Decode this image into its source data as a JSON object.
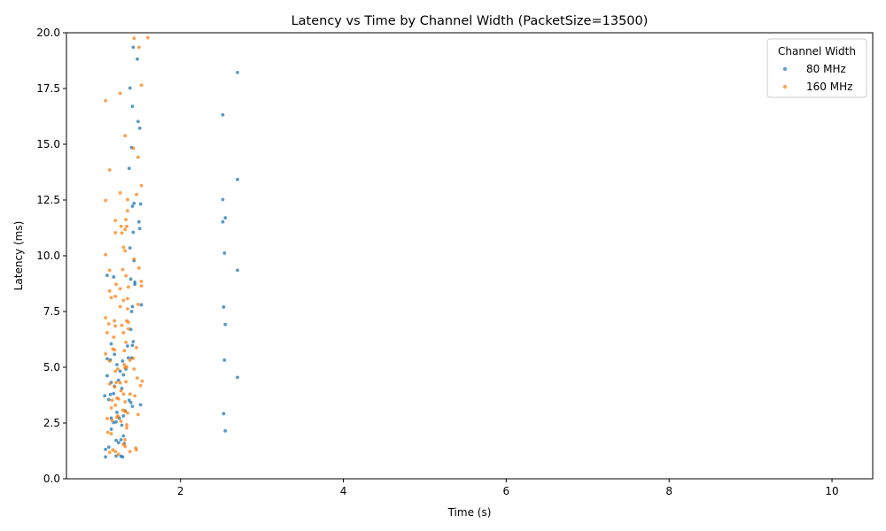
{
  "chart_data": {
    "type": "scatter",
    "title": "Latency vs Time by Channel Width (PacketSize=13500)",
    "xlabel": "Time (s)",
    "ylabel": "Latency (ms)",
    "xlim": [
      0.6,
      10.5
    ],
    "ylim": [
      0,
      20
    ],
    "xticks": [
      2,
      4,
      6,
      8,
      10
    ],
    "yticks": [
      0.0,
      2.5,
      5.0,
      7.5,
      10.0,
      12.5,
      15.0,
      17.5,
      20.0
    ],
    "grid": false,
    "legend": {
      "title": "Channel Width",
      "position": "top-right"
    },
    "series": [
      {
        "name": "80 MHz",
        "color": "#1f77b4",
        "points": [
          [
            1.42,
            19.35
          ],
          [
            1.47,
            18.82
          ],
          [
            1.38,
            17.52
          ],
          [
            1.41,
            16.7
          ],
          [
            1.48,
            16.02
          ],
          [
            1.5,
            15.72
          ],
          [
            1.4,
            14.85
          ],
          [
            1.37,
            13.92
          ],
          [
            1.51,
            12.32
          ],
          [
            1.43,
            12.35
          ],
          [
            1.41,
            12.22
          ],
          [
            1.49,
            11.52
          ],
          [
            1.5,
            11.22
          ],
          [
            1.42,
            11.05
          ],
          [
            1.38,
            10.35
          ],
          [
            1.43,
            9.78
          ],
          [
            1.1,
            9.12
          ],
          [
            1.18,
            9.05
          ],
          [
            1.39,
            8.95
          ],
          [
            1.44,
            8.82
          ],
          [
            1.44,
            8.72
          ],
          [
            1.52,
            7.8
          ],
          [
            1.41,
            7.72
          ],
          [
            1.4,
            7.5
          ],
          [
            1.39,
            6.7
          ],
          [
            1.15,
            6.05
          ],
          [
            1.42,
            6.15
          ],
          [
            1.35,
            5.95
          ],
          [
            1.41,
            5.98
          ],
          [
            1.19,
            5.58
          ],
          [
            1.1,
            5.38
          ],
          [
            1.14,
            5.33
          ],
          [
            1.4,
            5.42
          ],
          [
            1.36,
            5.42
          ],
          [
            1.22,
            5.12
          ],
          [
            1.29,
            5.28
          ],
          [
            1.26,
            4.82
          ],
          [
            1.1,
            4.62
          ],
          [
            1.33,
            4.92
          ],
          [
            1.3,
            4.66
          ],
          [
            1.24,
            4.42
          ],
          [
            1.15,
            4.32
          ],
          [
            1.19,
            4.15
          ],
          [
            1.28,
            4.05
          ],
          [
            1.18,
            3.82
          ],
          [
            1.14,
            3.78
          ],
          [
            1.07,
            3.72
          ],
          [
            1.12,
            3.55
          ],
          [
            1.37,
            3.52
          ],
          [
            1.39,
            3.42
          ],
          [
            1.51,
            3.32
          ],
          [
            1.41,
            3.25
          ],
          [
            1.32,
            3.05
          ],
          [
            1.22,
            2.98
          ],
          [
            1.3,
            2.82
          ],
          [
            1.15,
            2.72
          ],
          [
            1.25,
            2.72
          ],
          [
            1.21,
            2.55
          ],
          [
            1.18,
            2.52
          ],
          [
            1.28,
            2.4
          ],
          [
            1.15,
            2.22
          ],
          [
            1.3,
            1.92
          ],
          [
            1.27,
            1.75
          ],
          [
            1.21,
            1.72
          ],
          [
            1.24,
            1.62
          ],
          [
            1.31,
            1.58
          ],
          [
            1.12,
            1.42
          ],
          [
            1.08,
            1.32
          ],
          [
            1.21,
            1.02
          ],
          [
            1.27,
            1.01
          ],
          [
            1.29,
            0.98
          ],
          [
            1.08,
            0.98
          ],
          [
            2.7,
            18.22
          ],
          [
            2.52,
            16.32
          ],
          [
            2.7,
            13.42
          ],
          [
            2.52,
            12.52
          ],
          [
            2.55,
            11.7
          ],
          [
            2.52,
            11.52
          ],
          [
            2.54,
            10.12
          ],
          [
            2.7,
            9.35
          ],
          [
            2.53,
            7.7
          ],
          [
            2.55,
            6.92
          ],
          [
            2.54,
            5.32
          ],
          [
            2.7,
            4.55
          ],
          [
            2.53,
            2.92
          ],
          [
            2.55,
            2.15
          ]
        ]
      },
      {
        "name": "160 MHz",
        "color": "#ff7f0e",
        "points": [
          [
            1.43,
            19.75
          ],
          [
            1.6,
            19.78
          ],
          [
            1.49,
            19.35
          ],
          [
            1.52,
            17.65
          ],
          [
            1.26,
            17.28
          ],
          [
            1.08,
            16.95
          ],
          [
            1.32,
            15.38
          ],
          [
            1.42,
            14.82
          ],
          [
            1.48,
            14.42
          ],
          [
            1.13,
            13.85
          ],
          [
            1.52,
            13.15
          ],
          [
            1.26,
            12.82
          ],
          [
            1.46,
            12.75
          ],
          [
            1.35,
            12.52
          ],
          [
            1.08,
            12.48
          ],
          [
            1.35,
            12.02
          ],
          [
            1.33,
            11.62
          ],
          [
            1.2,
            11.58
          ],
          [
            1.27,
            11.32
          ],
          [
            1.34,
            11.32
          ],
          [
            1.32,
            11.18
          ],
          [
            1.2,
            11.03
          ],
          [
            1.28,
            11.02
          ],
          [
            1.3,
            10.38
          ],
          [
            1.32,
            10.22
          ],
          [
            1.08,
            10.05
          ],
          [
            1.43,
            9.85
          ],
          [
            1.49,
            9.45
          ],
          [
            1.29,
            9.38
          ],
          [
            1.13,
            9.35
          ],
          [
            1.33,
            9.1
          ],
          [
            1.52,
            8.85
          ],
          [
            1.21,
            8.72
          ],
          [
            1.52,
            8.65
          ],
          [
            1.36,
            8.6
          ],
          [
            1.26,
            8.52
          ],
          [
            1.13,
            8.42
          ],
          [
            1.2,
            8.18
          ],
          [
            1.15,
            8.12
          ],
          [
            1.35,
            8.08
          ],
          [
            1.3,
            8.0
          ],
          [
            1.26,
            7.72
          ],
          [
            1.48,
            7.82
          ],
          [
            1.35,
            7.62
          ],
          [
            1.08,
            7.22
          ],
          [
            1.19,
            7.08
          ],
          [
            1.34,
            7.08
          ],
          [
            1.36,
            7.02
          ],
          [
            1.12,
            6.95
          ],
          [
            1.2,
            6.85
          ],
          [
            1.28,
            6.88
          ],
          [
            1.36,
            6.72
          ],
          [
            1.1,
            6.55
          ],
          [
            1.3,
            6.55
          ],
          [
            1.18,
            6.35
          ],
          [
            1.33,
            6.12
          ],
          [
            1.17,
            5.82
          ],
          [
            1.46,
            5.88
          ],
          [
            1.19,
            5.78
          ],
          [
            1.31,
            5.75
          ],
          [
            1.08,
            5.6
          ],
          [
            1.42,
            5.4
          ],
          [
            1.38,
            5.32
          ],
          [
            1.13,
            5.28
          ],
          [
            1.31,
            5.12
          ],
          [
            1.34,
            5.02
          ],
          [
            1.32,
            4.98
          ],
          [
            1.43,
            4.92
          ],
          [
            1.23,
            4.92
          ],
          [
            1.2,
            4.82
          ],
          [
            1.47,
            4.52
          ],
          [
            1.33,
            4.35
          ],
          [
            1.53,
            4.38
          ],
          [
            1.21,
            4.32
          ],
          [
            1.26,
            4.3
          ],
          [
            1.13,
            4.25
          ],
          [
            1.51,
            4.18
          ],
          [
            1.19,
            4.12
          ],
          [
            1.27,
            3.95
          ],
          [
            1.3,
            3.8
          ],
          [
            1.38,
            3.8
          ],
          [
            1.44,
            3.72
          ],
          [
            1.22,
            3.62
          ],
          [
            1.24,
            3.58
          ],
          [
            1.16,
            3.52
          ],
          [
            1.32,
            3.45
          ],
          [
            1.2,
            3.3
          ],
          [
            1.15,
            3.18
          ],
          [
            1.29,
            3.08
          ],
          [
            1.32,
            3.02
          ],
          [
            1.35,
            2.95
          ],
          [
            1.48,
            2.88
          ],
          [
            1.23,
            2.82
          ],
          [
            1.22,
            2.75
          ],
          [
            1.1,
            2.7
          ],
          [
            1.16,
            2.62
          ],
          [
            1.27,
            2.58
          ],
          [
            1.34,
            2.42
          ],
          [
            1.34,
            2.28
          ],
          [
            1.11,
            2.08
          ],
          [
            1.15,
            2.02
          ],
          [
            1.32,
            1.75
          ],
          [
            1.3,
            1.55
          ],
          [
            1.32,
            1.45
          ],
          [
            1.45,
            1.38
          ],
          [
            1.46,
            1.3
          ],
          [
            1.17,
            1.3
          ],
          [
            1.2,
            1.22
          ],
          [
            1.38,
            1.22
          ],
          [
            1.13,
            1.18
          ],
          [
            1.24,
            1.1
          ]
        ]
      }
    ]
  }
}
